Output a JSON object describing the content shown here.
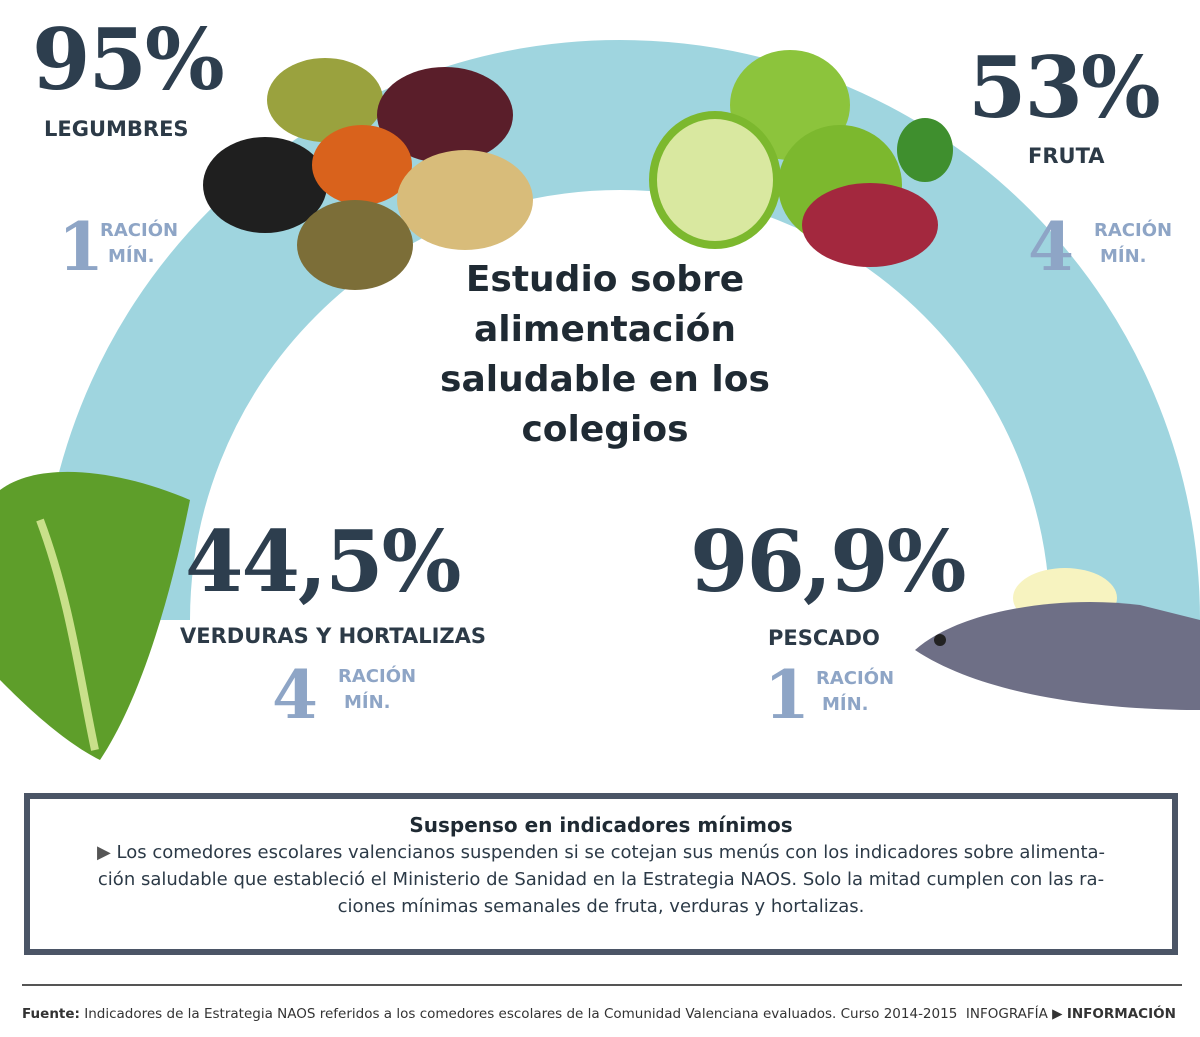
{
  "title": "Estudio sobre alimentación saludable en los colegios",
  "items": [
    {
      "percent": "95%",
      "label": "LEGUMBRES",
      "ration": "1",
      "ration_label": "RACIÓN",
      "ration_unit": "MÍN."
    },
    {
      "percent": "53%",
      "label": "FRUTA",
      "ration": "4",
      "ration_label": "RACIÓN",
      "ration_unit": "MÍN."
    },
    {
      "percent": "44,5%",
      "label": "VERDURAS Y HORTALIZAS",
      "ration": "4",
      "ration_label": "RACIÓN",
      "ration_unit": "MÍN."
    },
    {
      "percent": "96,9%",
      "label": "PESCADO",
      "ration": "1",
      "ration_label": "RACIÓN",
      "ration_unit": "MÍN."
    }
  ],
  "box": {
    "heading": "Suspenso en indicadores mínimos",
    "lines": [
      "Los comedores escolares valencianos suspenden si se cotejan sus menús con los indicadores sobre alimenta-",
      "ción saludable que estableció el Ministerio de Sanidad en la Estrategia NAOS. Solo la mitad cumplen con las ra-",
      "ciones mínimas semanales de fruta, verduras y hortalizas."
    ]
  },
  "footer": {
    "source_label": "Fuente:",
    "source": "Indicadores de la Estrategia NAOS referidos a los comedores escolares de la Comunidad Valenciana evaluados. Curso 2014-2015",
    "credit": "INFOGRAFÍA",
    "brand": "INFORMACIÓN"
  }
}
